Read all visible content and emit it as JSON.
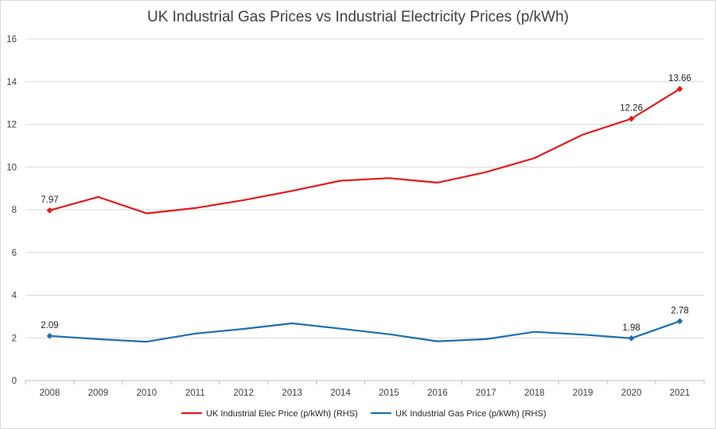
{
  "chart_data": {
    "type": "line",
    "title": "UK Industrial Gas Prices vs Industrial Electricity Prices (p/kWh)",
    "xlabel": "",
    "ylabel": "",
    "ylim": [
      0,
      16
    ],
    "y_ticks": [
      0,
      2,
      4,
      6,
      8,
      10,
      12,
      14,
      16
    ],
    "grid": true,
    "legend_position": "bottom",
    "categories": [
      "2008",
      "2009",
      "2010",
      "2011",
      "2012",
      "2013",
      "2014",
      "2015",
      "2016",
      "2017",
      "2018",
      "2019",
      "2020",
      "2021"
    ],
    "series": [
      {
        "name": "UK Industrial Elec Price (p/kWh) (RHS)",
        "color": "#e31a1c",
        "values": [
          7.97,
          8.6,
          7.83,
          8.08,
          8.45,
          8.88,
          9.36,
          9.48,
          9.27,
          9.76,
          10.42,
          11.52,
          12.26,
          13.66
        ],
        "labels": {
          "0": "7.97",
          "12": "12.26",
          "13": "13.66"
        },
        "markers": [
          0,
          12,
          13
        ]
      },
      {
        "name": "UK Industrial Gas Price (p/kWh) (RHS)",
        "color": "#1f6fb0",
        "values": [
          2.09,
          1.94,
          1.82,
          2.2,
          2.42,
          2.68,
          2.43,
          2.17,
          1.84,
          1.94,
          2.28,
          2.15,
          1.98,
          2.78
        ],
        "labels": {
          "0": "2.09",
          "12": "1.98",
          "13": "2.78"
        },
        "markers": [
          0,
          12,
          13
        ]
      }
    ]
  }
}
